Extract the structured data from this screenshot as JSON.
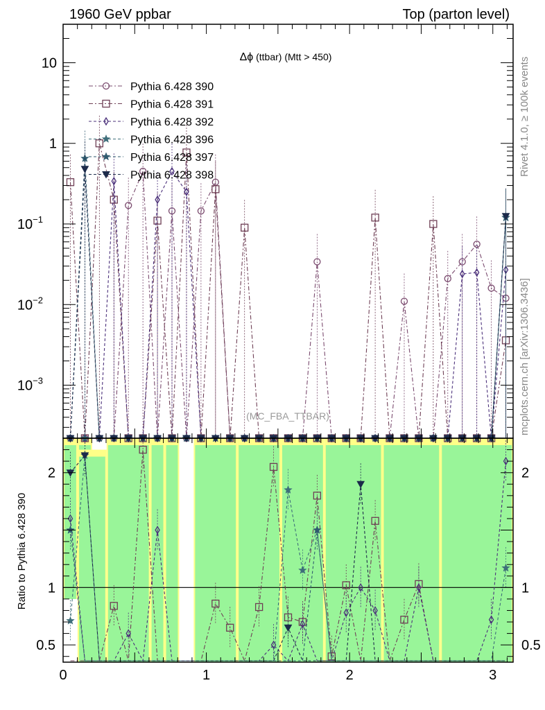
{
  "header": {
    "left": "1960 GeV ppbar",
    "right": "Top (parton level)"
  },
  "side": {
    "rivet": "Rivet 4.1.0, ≥ 100k events",
    "url": "mcplots.cern.ch [arXiv:1306.3436]"
  },
  "watermark": "(MC_FBA_TTBAR)",
  "chart_data": {
    "type": "line",
    "title": "Δϕ (ttbar) (Mtt > 450)",
    "title_prefix": "Δϕ",
    "title_rest": " (ttbar) (Mtt > 450)",
    "xlabel": "",
    "ylabel_ratio": "Ratio to Pythia 6.428 390",
    "xlim": [
      0,
      3.1416
    ],
    "ylim_main": [
      0.00022,
      30
    ],
    "ylim_ratio": [
      0.35,
      2.3
    ],
    "y_scale": "log",
    "x_ticks": [
      0,
      1,
      2,
      3
    ],
    "main_y_ticks": [
      {
        "value": 10,
        "base": "10",
        "exp": ""
      },
      {
        "value": 1,
        "base": "1",
        "exp": ""
      },
      {
        "value": 0.1,
        "base": "10",
        "exp": "−1"
      },
      {
        "value": 0.01,
        "base": "10",
        "exp": "−2"
      },
      {
        "value": 0.001,
        "base": "10",
        "exp": "−3"
      }
    ],
    "ratio_y_ticks": [
      {
        "value": 2,
        "label": "2"
      },
      {
        "value": 1,
        "label": "1"
      },
      {
        "value": 0.5,
        "label": "0.5"
      }
    ],
    "bins": 31,
    "legend_position": "top-left",
    "series": [
      {
        "name": "Pythia 6.428 390",
        "color": "#7a4a6e",
        "marker": "circle",
        "dash": "6,3,2,3",
        "values": [
          0,
          0,
          0,
          0,
          0.17,
          0.45,
          0,
          0.145,
          0,
          0.145,
          0.33,
          0,
          0,
          0,
          0,
          0,
          0,
          0.034,
          0,
          0,
          0,
          0,
          0,
          0.011,
          0,
          0,
          0.021,
          0.034,
          0.056,
          0.016,
          0.012
        ],
        "ratio": []
      },
      {
        "name": "Pythia 6.428 391",
        "color": "#6e3e54",
        "marker": "square",
        "dash": "6,3,2,3",
        "values": [
          0.33,
          0,
          1.0,
          0.2,
          0,
          0,
          0.11,
          0,
          0.77,
          0,
          0.27,
          0,
          0.09,
          0,
          0,
          0,
          0,
          0,
          0,
          0,
          0,
          0.12,
          0,
          0,
          0,
          0.1,
          0,
          0,
          0,
          0,
          0.0036
        ],
        "ratio": [
          0,
          0,
          0,
          0.84,
          0,
          2.2,
          0,
          0,
          0,
          0,
          0.86,
          0.65,
          0,
          0.83,
          2.05,
          0.74,
          0.7,
          1.8,
          0.4,
          1.02,
          0,
          1.58,
          0,
          0.72,
          1.03,
          0,
          0,
          0,
          0,
          0,
          0
        ]
      },
      {
        "name": "Pythia 6.428 392",
        "color": "#4a2f7a",
        "marker": "diamond",
        "dash": "4,3",
        "values": [
          0,
          0,
          0,
          0.34,
          0,
          0,
          0.2,
          0.45,
          0.25,
          0,
          0,
          0,
          0,
          0,
          0,
          0,
          0,
          0,
          0,
          0,
          0,
          0,
          0,
          0,
          0,
          0,
          0,
          0.024,
          0.025,
          0,
          0.027
        ],
        "ratio": [
          1.6,
          0,
          0,
          0,
          0.6,
          0,
          1.5,
          0,
          0,
          0,
          0,
          0,
          0,
          0,
          0.5,
          0,
          0.68,
          0,
          0,
          0.78,
          1.0,
          0.8,
          0,
          0,
          1.0,
          0,
          0,
          0,
          0,
          0.72,
          2.1
        ]
      },
      {
        "name": "Pythia 6.428 396",
        "color": "#3e6e7a",
        "marker": "star",
        "dash": "4,3",
        "values": [
          0,
          0,
          0,
          0,
          0,
          0,
          0,
          0,
          0,
          0,
          0,
          0,
          0,
          0,
          0,
          0,
          0,
          0,
          0,
          0,
          0,
          0,
          0,
          0,
          0,
          0,
          0,
          0,
          0,
          0,
          0.12
        ],
        "ratio": [
          0.71,
          2.15,
          0,
          0,
          0,
          0,
          0,
          0,
          0,
          0,
          0,
          0,
          0,
          0,
          0,
          1.85,
          1.15,
          1.5,
          0,
          0,
          0,
          0,
          0,
          0,
          0,
          0,
          0,
          0,
          0,
          0,
          1.17
        ]
      },
      {
        "name": "Pythia 6.428 397",
        "color": "#2f5a6e",
        "marker": "star",
        "dash": "4,3",
        "values": [
          0,
          0.65,
          0,
          0,
          0,
          0,
          0,
          0,
          0,
          0,
          0,
          0,
          0,
          0,
          0,
          0,
          0,
          0,
          0,
          0,
          0,
          0,
          0,
          0,
          0,
          0,
          0,
          0,
          0,
          0,
          0.12
        ],
        "ratio": [
          1.5,
          0,
          0,
          0,
          0,
          0,
          0,
          0,
          0,
          0,
          0,
          0,
          0,
          0,
          0,
          0,
          0,
          1.5,
          0,
          0,
          0,
          0,
          0,
          0,
          0,
          0,
          0,
          0,
          0,
          0,
          0
        ]
      },
      {
        "name": "Pythia 6.428 398",
        "color": "#1c2a4a",
        "marker": "triangle-down",
        "dash": "4,3",
        "values": [
          0,
          0.48,
          0,
          0,
          0,
          0,
          0,
          0,
          0,
          0,
          0,
          0,
          0,
          0,
          0,
          0,
          0,
          0,
          0,
          0,
          0,
          0,
          0,
          0,
          0,
          0,
          0,
          0,
          0,
          0,
          0.125
        ],
        "ratio": [
          2.0,
          2.15,
          0,
          0,
          0,
          0,
          0,
          0,
          0,
          0,
          0,
          0,
          0,
          0,
          0,
          0.65,
          0,
          0,
          0,
          0,
          1.9,
          0,
          0,
          0,
          0,
          0,
          0,
          0,
          0,
          0,
          0
        ]
      }
    ],
    "uncertainty_bands": [
      {
        "x": [
          0,
          0.1013
        ],
        "lo": 0.9,
        "hi": 2.3
      },
      {
        "x": [
          0.1013,
          0.2027
        ],
        "lo": 0.35,
        "hi": 2.3
      },
      {
        "x": [
          0.1013,
          0.304
        ],
        "lo": 0.35,
        "hi": 2.2
      },
      {
        "x": [
          0.304,
          0.608
        ],
        "lo": 0.35,
        "hi": 2.3
      },
      {
        "x": [
          0.608,
          0.7094
        ],
        "lo": 0.35,
        "hi": 2.3
      },
      {
        "x": [
          0.7094,
          0.8107
        ],
        "lo": 0.35,
        "hi": 2.3
      },
      {
        "x": [
          0.912,
          1.216
        ],
        "lo": 0.35,
        "hi": 2.3
      },
      {
        "x": [
          1.216,
          1.52
        ],
        "lo": 0.35,
        "hi": 2.3
      },
      {
        "x": [
          1.52,
          1.824
        ],
        "lo": 0.35,
        "hi": 2.3
      },
      {
        "x": [
          1.824,
          2.2293
        ],
        "lo": 0.35,
        "hi": 2.3
      },
      {
        "x": [
          2.2293,
          2.6347
        ],
        "lo": 0.35,
        "hi": 2.3
      },
      {
        "x": [
          2.6347,
          3.1416
        ],
        "lo": 0.35,
        "hi": 2.3
      }
    ]
  }
}
